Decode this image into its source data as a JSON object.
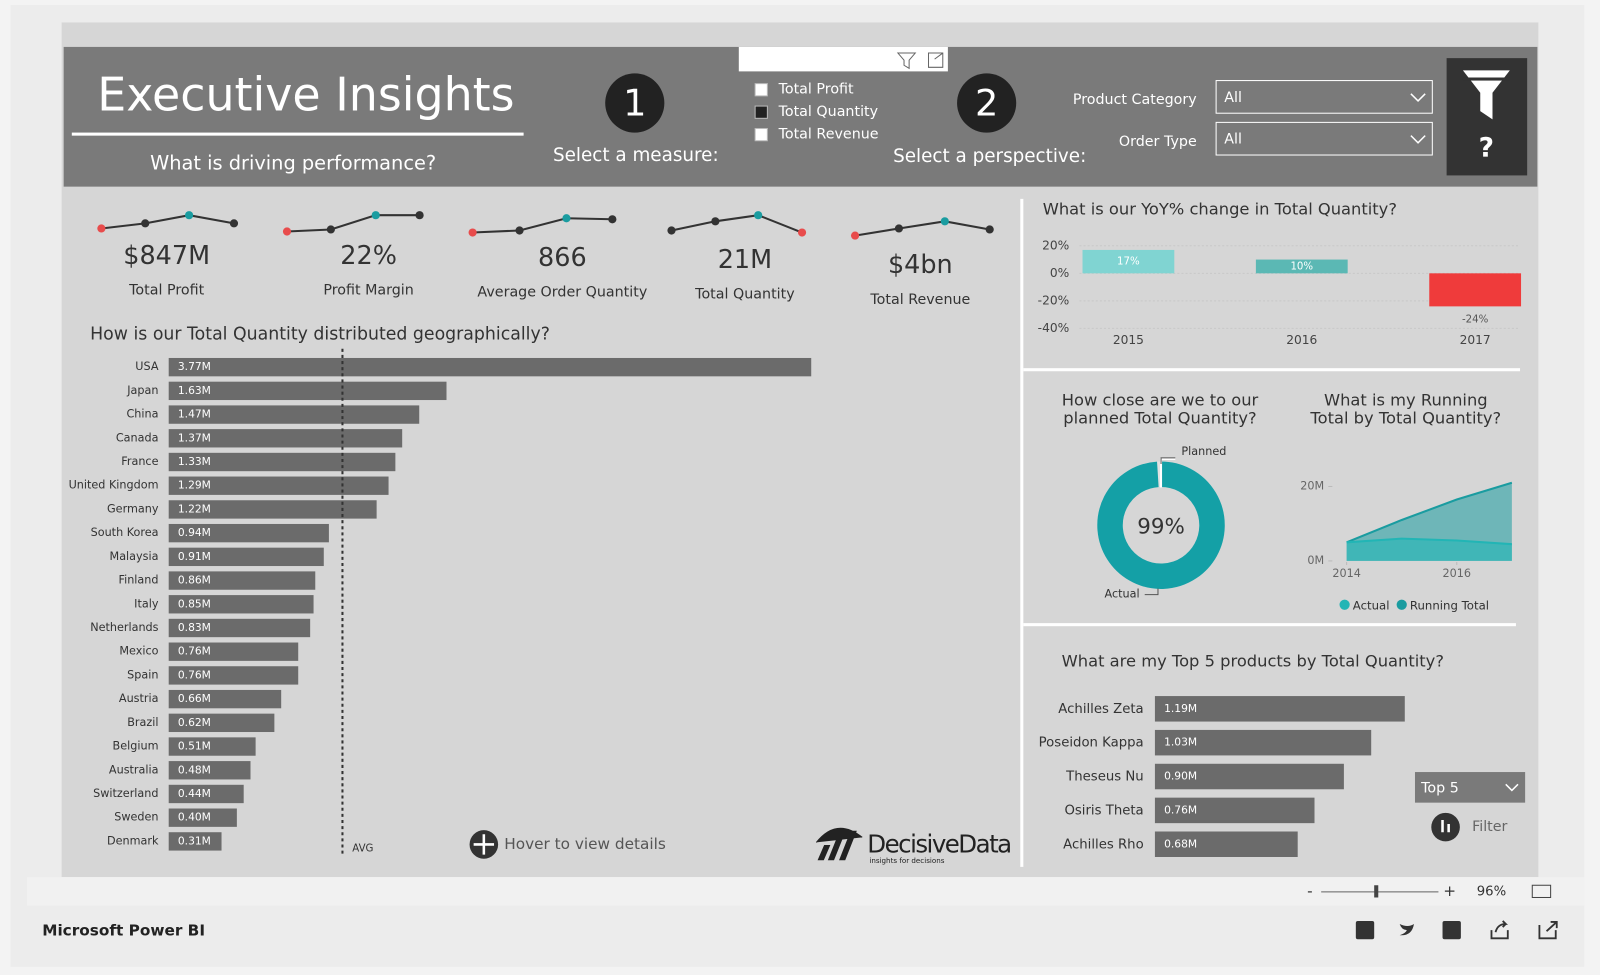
{
  "header": {
    "title": "Executive Insights",
    "subtitle": "What is driving performance?",
    "step1": {
      "number": "1",
      "label": "Select a measure:"
    },
    "measures": [
      {
        "label": "Total Profit",
        "checked": false
      },
      {
        "label": "Total Quantity",
        "checked": true
      },
      {
        "label": "Total Revenue",
        "checked": false
      }
    ],
    "step2": {
      "number": "2",
      "label": "Select a perspective:"
    },
    "filters": [
      {
        "label": "Product Category",
        "value": "All"
      },
      {
        "label": "Order Type",
        "value": "All"
      }
    ],
    "help": "?"
  },
  "kpis": [
    {
      "value": "$847M",
      "label": "Total Profit"
    },
    {
      "value": "22%",
      "label": "Profit Margin"
    },
    {
      "value": "866",
      "label": "Average Order Quantity"
    },
    {
      "value": "21M",
      "label": "Total Quantity"
    },
    {
      "value": "$4bn",
      "label": "Total Revenue"
    }
  ],
  "geo": {
    "type": "bar",
    "title": "How is our Total Quantity distributed geographically?",
    "categories": [
      "USA",
      "Japan",
      "China",
      "Canada",
      "France",
      "United Kingdom",
      "Germany",
      "South Korea",
      "Malaysia",
      "Finland",
      "Italy",
      "Netherlands",
      "Mexico",
      "Spain",
      "Austria",
      "Brazil",
      "Belgium",
      "Australia",
      "Switzerland",
      "Sweden",
      "Denmark"
    ],
    "values": [
      3.77,
      1.63,
      1.47,
      1.37,
      1.33,
      1.29,
      1.22,
      0.94,
      0.91,
      0.86,
      0.85,
      0.83,
      0.76,
      0.76,
      0.66,
      0.62,
      0.51,
      0.48,
      0.44,
      0.4,
      0.31
    ],
    "value_labels": [
      "3.77M",
      "1.63M",
      "1.47M",
      "1.37M",
      "1.33M",
      "1.29M",
      "1.22M",
      "0.94M",
      "0.91M",
      "0.86M",
      "0.85M",
      "0.83M",
      "0.76M",
      "0.76M",
      "0.66M",
      "0.62M",
      "0.51M",
      "0.48M",
      "0.44M",
      "0.40M",
      "0.31M"
    ],
    "color": "#6b6b6b",
    "average_label": "AVG",
    "hint": "Hover to view details"
  },
  "logo": {
    "name": "DecisiveData",
    "tagline": "insights for decisions"
  },
  "yoy": {
    "type": "bar",
    "title": "What is our YoY% change in Total Quantity?",
    "categories": [
      "2015",
      "2016",
      "2017"
    ],
    "values": [
      17,
      10,
      -24
    ],
    "value_labels": [
      "17%",
      "10%",
      "-24%"
    ],
    "colors": [
      "#80d4d2",
      "#5bb8b4",
      "#ef3b3b"
    ],
    "ylim": [
      -40,
      20
    ],
    "yticks": [
      {
        "value": 20,
        "label": "20%"
      },
      {
        "value": 0,
        "label": "0%"
      },
      {
        "value": -20,
        "label": "-20%"
      },
      {
        "value": -40,
        "label": "-40%"
      }
    ],
    "grid": true
  },
  "gauge": {
    "type": "donut",
    "title_lines": [
      "How close are we to our",
      "planned Total Quantity?"
    ],
    "value": 99,
    "value_label": "99%",
    "color": "#14a0a6",
    "target_label": "Planned",
    "actual_label": "Actual"
  },
  "running": {
    "type": "area",
    "title_lines": [
      "What is my Running",
      "Total by Total Quantity?"
    ],
    "x": [
      2014,
      2015,
      2016,
      2017
    ],
    "series": [
      {
        "name": "Actual",
        "color": "#22b5b5",
        "values": [
          5,
          6,
          5.5,
          4.5
        ]
      },
      {
        "name": "Running Total",
        "color": "#1a9ca0",
        "values": [
          5,
          11,
          16.5,
          21
        ]
      }
    ],
    "xlim": [
      2014,
      2017
    ],
    "xticks": [
      2014,
      2016
    ],
    "ylim": [
      0,
      22
    ],
    "yticks": [
      {
        "value": 0,
        "label": "0M"
      },
      {
        "value": 20,
        "label": "20M"
      }
    ]
  },
  "top5": {
    "type": "bar",
    "title": "What are my Top 5 products by Total Quantity?",
    "categories": [
      "Achilles Zeta",
      "Poseidon Kappa",
      "Theseus Nu",
      "Osiris Theta",
      "Achilles Rho"
    ],
    "values": [
      1.19,
      1.03,
      0.9,
      0.76,
      0.68
    ],
    "value_labels": [
      "1.19M",
      "1.03M",
      "0.90M",
      "0.76M",
      "0.68M"
    ],
    "color": "#6b6b6b",
    "selector": "Top 5",
    "filter_label": "Filter"
  },
  "footer": {
    "brand": "Microsoft Power BI",
    "zoom_out": "-",
    "zoom_in": "+",
    "zoom": "96%"
  }
}
